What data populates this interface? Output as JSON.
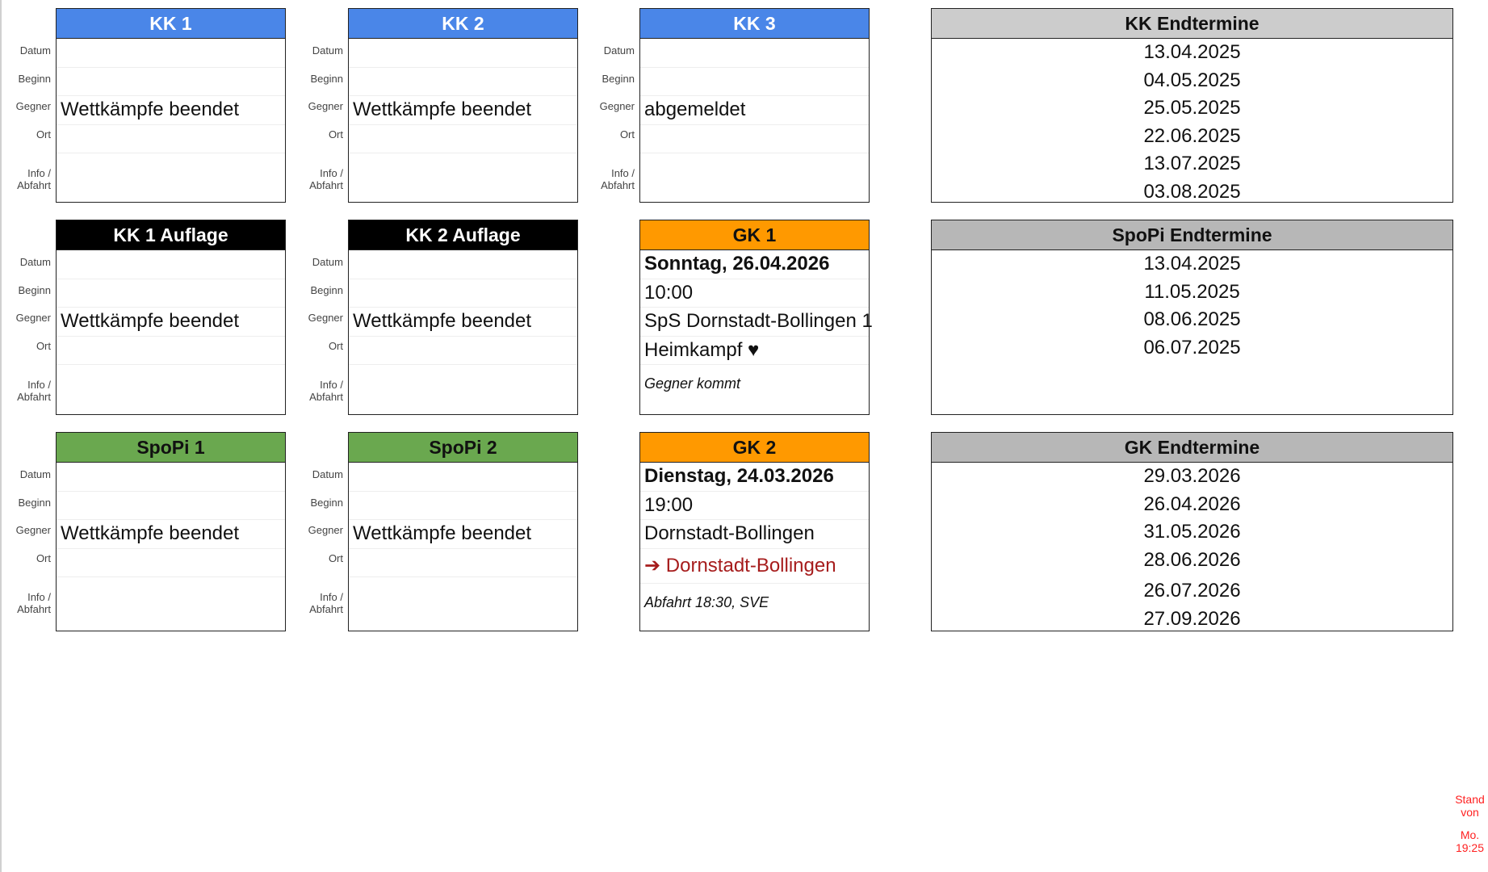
{
  "row_labels": [
    "Datum",
    "Beginn",
    "Gegner",
    "Ort",
    "Info /",
    "Abfahrt"
  ],
  "cards": [
    {
      "title": "KK 1",
      "header_color": "#4a86e8",
      "header_text_color": "#ffffff",
      "message": "Wettkämpfe beendet"
    },
    {
      "title": "KK 2",
      "header_color": "#4a86e8",
      "header_text_color": "#ffffff",
      "message": "Wettkämpfe beendet"
    },
    {
      "title": "KK 3",
      "header_color": "#4a86e8",
      "header_text_color": "#ffffff",
      "message": "abgemeldet"
    },
    {
      "title": "KK 1 Auflage",
      "header_color": "#000000",
      "header_text_color": "#ffffff",
      "message": "Wettkämpfe beendet"
    },
    {
      "title": "KK 2 Auflage",
      "header_color": "#000000",
      "header_text_color": "#ffffff",
      "message": "Wettkämpfe beendet"
    },
    {
      "title": "GK 1",
      "header_color": "#ff9900",
      "header_text_color": "#111111",
      "datum": "Sonntag, 26.04.2026",
      "beginn": "10:00",
      "gegner": "SpS Dornstadt-Bollingen 1",
      "ort": "Heimkampf ♥",
      "info": "Gegner kommt"
    },
    {
      "title": "SpoPi 1",
      "header_color": "#6aa84f",
      "header_text_color": "#111111",
      "message": "Wettkämpfe beendet"
    },
    {
      "title": "SpoPi 2",
      "header_color": "#6aa84f",
      "header_text_color": "#111111",
      "message": "Wettkämpfe beendet"
    },
    {
      "title": "GK 2",
      "header_color": "#ff9900",
      "header_text_color": "#111111",
      "datum": "Dienstag, 24.03.2026",
      "beginn": "19:00",
      "gegner": "Dornstadt-Bollingen",
      "ort": "➔ Dornstadt-Bollingen",
      "ort_color": "#a61c1c",
      "info": "Abfahrt 18:30, SVE"
    }
  ],
  "endtermine": [
    {
      "title": "KK Endtermine",
      "header_color": "#cccccc",
      "dates": [
        "13.04.2025",
        "04.05.2025",
        "25.05.2025",
        "22.06.2025",
        "13.07.2025",
        "03.08.2025"
      ]
    },
    {
      "title": "SpoPi Endtermine",
      "header_color": "#b7b7b7",
      "dates": [
        "13.04.2025",
        "11.05.2025",
        "08.06.2025",
        "06.07.2025"
      ]
    },
    {
      "title": "GK Endtermine",
      "header_color": "#b7b7b7",
      "dates": [
        "29.03.2026",
        "26.04.2026",
        "31.05.2026",
        "28.06.2026",
        "26.07.2026",
        "27.09.2026"
      ]
    }
  ],
  "stand": {
    "line1": "Stand",
    "line2": "von",
    "line3": "Mo.",
    "line4": "19:25",
    "color": "#ff2020"
  }
}
